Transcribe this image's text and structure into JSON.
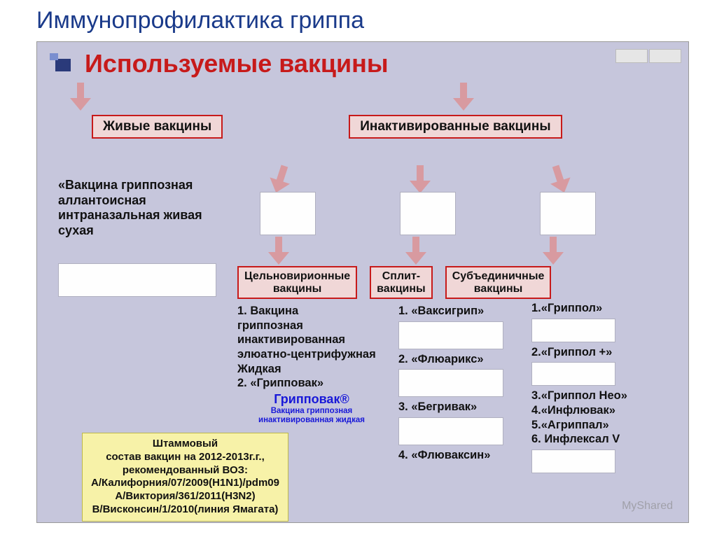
{
  "colors": {
    "page_title": "#1a3a8a",
    "slide_title": "#c71a1a",
    "box_border": "#c71a1a",
    "box_bg": "#f0d7d7",
    "content_bg": "#c6c6dc",
    "arrow": "#d89aa0",
    "who_bg": "#f7f2a8",
    "grippovak_text": "#1818d8"
  },
  "page_title": "Иммунопрофилактика гриппа",
  "slide_title": "Используемые вакцины",
  "categories": {
    "live": "Живые вакцины",
    "inactivated": "Инактивированные вакцины"
  },
  "live_description": "«Вакцина гриппозная аллантоисная интраназальная живая сухая",
  "subtypes": {
    "whole": "Цельновирионные\nвакцины",
    "split": "Сплит-\nвакцины",
    "subunit": "Субъединичные\nвакцины"
  },
  "col_whole": [
    "1.    Вакцина",
    "гриппозная",
    "инактивированная",
    "элюатно-центрифужная",
    "Жидкая",
    "2. «Грипповак»"
  ],
  "col_split": {
    "items": [
      "1.  «Ваксигрип»",
      "2.  «Флюарикс»",
      "3.  «Бегривак»",
      "4.  «Флюваксин»"
    ]
  },
  "col_subunit": {
    "items": [
      "1.«Гриппол»",
      "2.«Гриппол +»",
      "3.«Гриппол Нео»",
      "4.«Инфлювак»",
      "5.«Агриппал»",
      "6. Инфлексал V"
    ]
  },
  "grippovak": {
    "name": "Грипповак®",
    "sub1": "Вакцина гриппозная",
    "sub2": "инактивированная жидкая"
  },
  "who_box": [
    "Штаммовый",
    "состав вакцин на 2012-2013г.г.,",
    "рекомендованный ВОЗ:",
    "А/Калифорния/07/2009(H1N1)/pdm09",
    "А/Виктория/361/2011(H3N2)",
    "В/Висконсин/1/2010(линия Ямагата)"
  ],
  "watermark": "MyShared"
}
